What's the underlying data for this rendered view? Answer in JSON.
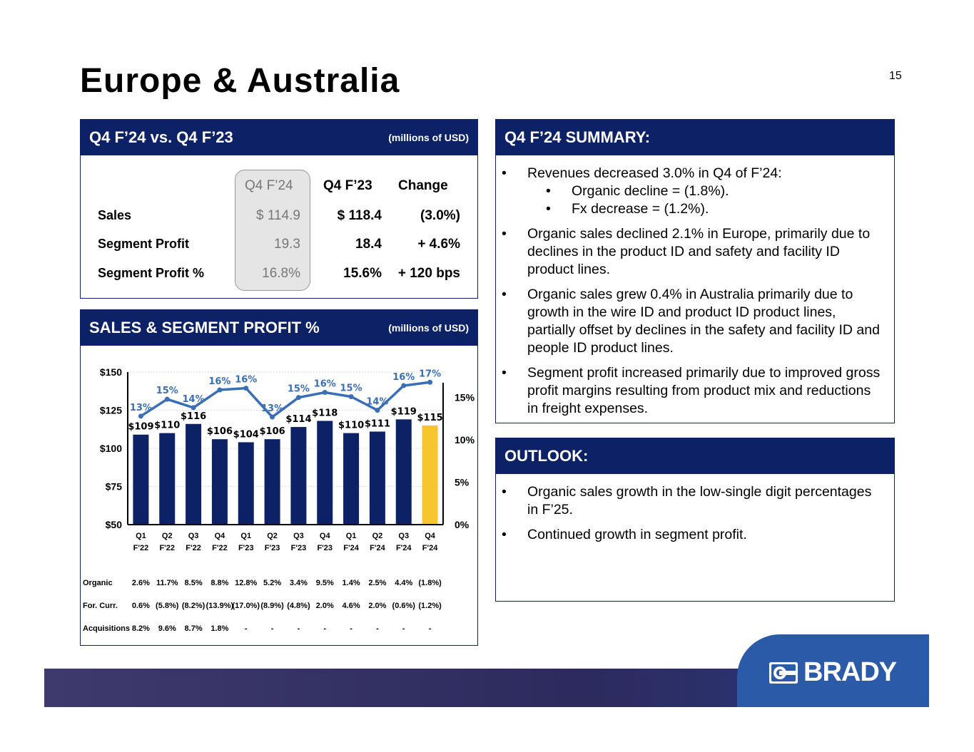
{
  "title": "Europe & Australia",
  "page_number": "15",
  "table_panel": {
    "header": "Q4 F’24 vs. Q4 F’23",
    "units": "(millions of USD)",
    "columns": [
      "Q4 F’24",
      "Q4 F’23",
      "Change"
    ],
    "rows": [
      {
        "label": "Sales",
        "cur": "$ 114.9",
        "prev": "$ 118.4",
        "change": "(3.0%)"
      },
      {
        "label": "Segment Profit",
        "cur": "19.3",
        "prev": "18.4",
        "change": "+ 4.6%"
      },
      {
        "label": "Segment Profit %",
        "cur": "16.8%",
        "prev": "15.6%",
        "change": "+ 120 bps"
      }
    ]
  },
  "chart_panel": {
    "header": "SALES & SEGMENT PROFIT %",
    "units": "(millions of USD)"
  },
  "chart_data": {
    "type": "bar+line",
    "categories": [
      "Q1 F'22",
      "Q2 F'22",
      "Q3 F'22",
      "Q4 F'22",
      "Q1 F'23",
      "Q2 F'23",
      "Q3 F'23",
      "Q4 F'23",
      "Q1 F'24",
      "Q2 F'24",
      "Q3 F'24",
      "Q4 F'24"
    ],
    "bars": {
      "values": [
        109,
        110,
        116,
        106,
        104,
        106,
        114,
        118,
        110,
        111,
        119,
        115
      ],
      "labels": [
        "$109",
        "$110",
        "$116",
        "$106",
        "$104",
        "$106",
        "$114",
        "$118",
        "$110",
        "$111",
        "$119",
        "$115"
      ],
      "color": "#0d2266",
      "highlight_color": "#f7c52c"
    },
    "line": {
      "values": [
        12.8,
        14.8,
        13.8,
        15.9,
        16.1,
        12.7,
        15.0,
        15.6,
        15.1,
        13.5,
        16.4,
        16.8
      ],
      "labels": [
        "13%",
        "15%",
        "14%",
        "16%",
        "16%",
        "13%",
        "15%",
        "16%",
        "15%",
        "14%",
        "16%",
        "17%"
      ],
      "color": "#3a6fb5"
    },
    "y_left": {
      "range": [
        50,
        150
      ],
      "ticks": [
        "$50",
        "$75",
        "$100",
        "$125",
        "$150"
      ]
    },
    "y_right": {
      "range": [
        0,
        18
      ],
      "ticks": [
        "0%",
        "5%",
        "10%",
        "15%"
      ]
    },
    "grid": true
  },
  "growth_table": {
    "rows": [
      {
        "label": "Organic",
        "values": [
          "2.6%",
          "11.7%",
          "8.5%",
          "8.8%",
          "12.8%",
          "5.2%",
          "3.4%",
          "9.5%",
          "1.4%",
          "2.5%",
          "4.4%",
          "(1.8%)"
        ]
      },
      {
        "label": "For. Curr.",
        "values": [
          "0.6%",
          "(5.8%)",
          "(8.2%)",
          "(13.9%)",
          "(17.0%)",
          "(8.9%)",
          "(4.8%)",
          "2.0%",
          "4.6%",
          "2.0%",
          "(0.6%)",
          "(1.2%)"
        ]
      },
      {
        "label": "Acquisitions",
        "values": [
          "8.2%",
          "9.6%",
          "8.7%",
          "1.8%",
          "-",
          "-",
          "-",
          "-",
          "-",
          "-",
          "-",
          "-"
        ]
      }
    ]
  },
  "summary": {
    "header": "Q4 F’24 SUMMARY:",
    "bullets": [
      "Revenues decreased 3.0% in Q4 of F’24:",
      "Organic decline = (1.8%).",
      "Fx decrease = (1.2%).",
      "Organic sales declined 2.1% in Europe, primarily due to declines in the product ID and safety and facility ID product lines.",
      "Organic sales grew 0.4% in Australia primarily due to growth in the wire ID and product ID product lines, partially offset by declines in the safety and facility ID and people ID product lines.",
      "Segment profit increased primarily due to improved gross profit margins resulting from product mix and reductions in freight expenses."
    ]
  },
  "outlook": {
    "header": "OUTLOOK:",
    "bullets": [
      "Organic sales growth in the low-single digit percentages in F’25.",
      "Continued growth in segment profit."
    ]
  },
  "logo": "BRADY"
}
